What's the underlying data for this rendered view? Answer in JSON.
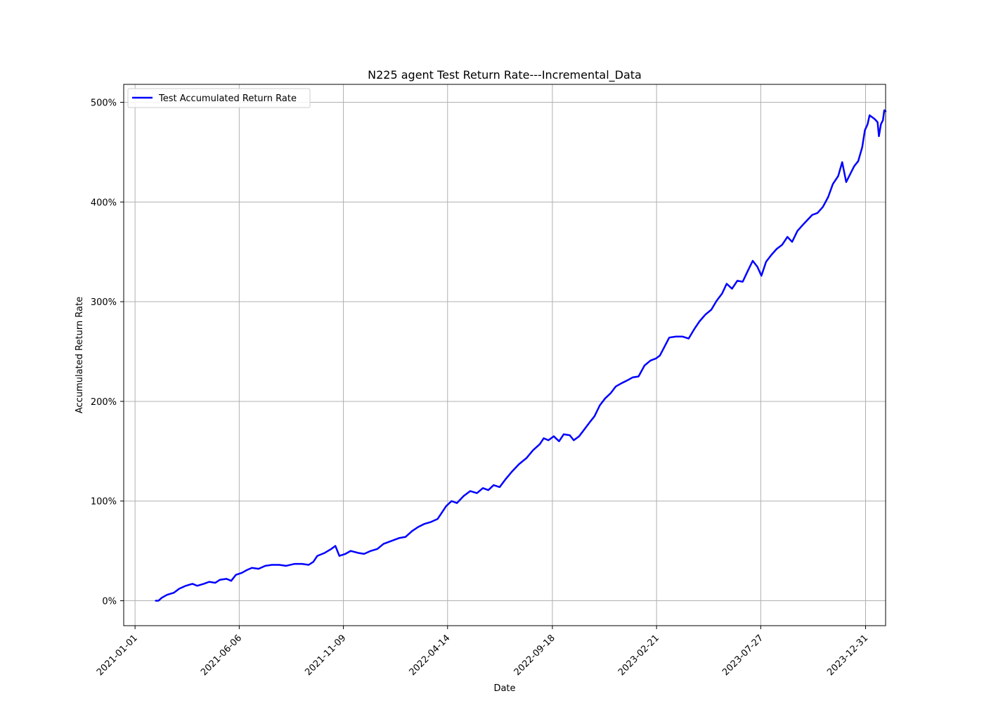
{
  "chart_data": {
    "type": "line",
    "title": "N225 agent Test Return Rate---Incremental_Data",
    "xlabel": "Date",
    "ylabel": "Accumulated Return Rate",
    "x_axis_kind": "date",
    "xlim": [
      "2020-12-15",
      "2024-01-30"
    ],
    "ylim": [
      -25,
      518
    ],
    "x_ticks": [
      "2021-01-01",
      "2021-06-06",
      "2021-11-09",
      "2022-04-14",
      "2022-09-18",
      "2023-02-21",
      "2023-07-27",
      "2023-12-31"
    ],
    "y_ticks": [
      0,
      100,
      200,
      300,
      400,
      500
    ],
    "y_tick_labels": [
      "0%",
      "100%",
      "200%",
      "300%",
      "400%",
      "500%"
    ],
    "grid": true,
    "legend_position": "top-left",
    "line_color": "#0000ff",
    "series": [
      {
        "name": "Test Accumulated Return Rate",
        "color": "#0000ff",
        "points": [
          [
            "2021-02-01",
            0
          ],
          [
            "2021-02-05",
            0
          ],
          [
            "2021-02-10",
            3
          ],
          [
            "2021-02-18",
            6
          ],
          [
            "2021-02-28",
            8
          ],
          [
            "2021-03-08",
            12
          ],
          [
            "2021-03-18",
            15
          ],
          [
            "2021-03-28",
            17
          ],
          [
            "2021-04-04",
            15
          ],
          [
            "2021-04-14",
            17
          ],
          [
            "2021-04-22",
            19
          ],
          [
            "2021-05-01",
            18
          ],
          [
            "2021-05-08",
            21
          ],
          [
            "2021-05-18",
            22
          ],
          [
            "2021-05-25",
            20
          ],
          [
            "2021-06-01",
            26
          ],
          [
            "2021-06-10",
            28
          ],
          [
            "2021-06-18",
            31
          ],
          [
            "2021-06-25",
            33
          ],
          [
            "2021-07-05",
            32
          ],
          [
            "2021-07-15",
            35
          ],
          [
            "2021-07-25",
            36
          ],
          [
            "2021-08-05",
            36
          ],
          [
            "2021-08-15",
            35
          ],
          [
            "2021-08-28",
            37
          ],
          [
            "2021-09-08",
            37
          ],
          [
            "2021-09-18",
            36
          ],
          [
            "2021-09-25",
            39
          ],
          [
            "2021-10-01",
            45
          ],
          [
            "2021-10-12",
            48
          ],
          [
            "2021-10-22",
            52
          ],
          [
            "2021-10-28",
            55
          ],
          [
            "2021-11-03",
            45
          ],
          [
            "2021-11-12",
            47
          ],
          [
            "2021-11-20",
            50
          ],
          [
            "2021-12-01",
            48
          ],
          [
            "2021-12-10",
            47
          ],
          [
            "2021-12-20",
            50
          ],
          [
            "2021-12-30",
            52
          ],
          [
            "2022-01-08",
            57
          ],
          [
            "2022-01-20",
            60
          ],
          [
            "2022-02-01",
            63
          ],
          [
            "2022-02-10",
            64
          ],
          [
            "2022-02-20",
            70
          ],
          [
            "2022-03-01",
            74
          ],
          [
            "2022-03-10",
            77
          ],
          [
            "2022-03-20",
            79
          ],
          [
            "2022-03-30",
            82
          ],
          [
            "2022-04-05",
            88
          ],
          [
            "2022-04-12",
            95
          ],
          [
            "2022-04-20",
            100
          ],
          [
            "2022-04-28",
            98
          ],
          [
            "2022-05-08",
            105
          ],
          [
            "2022-05-18",
            110
          ],
          [
            "2022-05-28",
            108
          ],
          [
            "2022-06-06",
            113
          ],
          [
            "2022-06-14",
            111
          ],
          [
            "2022-06-22",
            116
          ],
          [
            "2022-07-01",
            114
          ],
          [
            "2022-07-10",
            122
          ],
          [
            "2022-07-20",
            130
          ],
          [
            "2022-07-30",
            137
          ],
          [
            "2022-08-10",
            143
          ],
          [
            "2022-08-20",
            151
          ],
          [
            "2022-08-30",
            157
          ],
          [
            "2022-09-05",
            163
          ],
          [
            "2022-09-12",
            161
          ],
          [
            "2022-09-20",
            165
          ],
          [
            "2022-09-28",
            160
          ],
          [
            "2022-10-05",
            167
          ],
          [
            "2022-10-14",
            166
          ],
          [
            "2022-10-20",
            161
          ],
          [
            "2022-10-28",
            165
          ],
          [
            "2022-11-05",
            172
          ],
          [
            "2022-11-14",
            180
          ],
          [
            "2022-11-20",
            185
          ],
          [
            "2022-11-28",
            196
          ],
          [
            "2022-12-06",
            203
          ],
          [
            "2022-12-14",
            208
          ],
          [
            "2022-12-22",
            215
          ],
          [
            "2022-12-30",
            218
          ],
          [
            "2023-01-08",
            221
          ],
          [
            "2023-01-16",
            224
          ],
          [
            "2023-01-25",
            225
          ],
          [
            "2023-02-03",
            236
          ],
          [
            "2023-02-12",
            241
          ],
          [
            "2023-02-20",
            243
          ],
          [
            "2023-02-26",
            246
          ],
          [
            "2023-03-05",
            255
          ],
          [
            "2023-03-12",
            264
          ],
          [
            "2023-03-22",
            265
          ],
          [
            "2023-04-01",
            265
          ],
          [
            "2023-04-10",
            263
          ],
          [
            "2023-04-18",
            272
          ],
          [
            "2023-04-26",
            280
          ],
          [
            "2023-05-05",
            287
          ],
          [
            "2023-05-14",
            292
          ],
          [
            "2023-05-22",
            301
          ],
          [
            "2023-05-30",
            308
          ],
          [
            "2023-06-06",
            318
          ],
          [
            "2023-06-14",
            313
          ],
          [
            "2023-06-22",
            321
          ],
          [
            "2023-06-30",
            320
          ],
          [
            "2023-07-07",
            330
          ],
          [
            "2023-07-15",
            341
          ],
          [
            "2023-07-22",
            335
          ],
          [
            "2023-07-28",
            326
          ],
          [
            "2023-08-04",
            340
          ],
          [
            "2023-08-12",
            347
          ],
          [
            "2023-08-20",
            353
          ],
          [
            "2023-08-28",
            357
          ],
          [
            "2023-09-05",
            365
          ],
          [
            "2023-09-12",
            360
          ],
          [
            "2023-09-20",
            371
          ],
          [
            "2023-09-28",
            377
          ],
          [
            "2023-10-05",
            382
          ],
          [
            "2023-10-12",
            387
          ],
          [
            "2023-10-20",
            389
          ],
          [
            "2023-10-28",
            395
          ],
          [
            "2023-11-05",
            405
          ],
          [
            "2023-11-12",
            418
          ],
          [
            "2023-11-20",
            426
          ],
          [
            "2023-11-26",
            440
          ],
          [
            "2023-12-02",
            420
          ],
          [
            "2023-12-08",
            428
          ],
          [
            "2023-12-14",
            436
          ],
          [
            "2023-12-20",
            441
          ],
          [
            "2023-12-26",
            455
          ],
          [
            "2023-12-30",
            472
          ],
          [
            "2024-01-03",
            478
          ],
          [
            "2024-01-06",
            487
          ],
          [
            "2024-01-10",
            485
          ],
          [
            "2024-01-14",
            483
          ],
          [
            "2024-01-18",
            480
          ],
          [
            "2024-01-20",
            466
          ],
          [
            "2024-01-23",
            478
          ],
          [
            "2024-01-26",
            482
          ],
          [
            "2024-01-28",
            492
          ],
          [
            "2024-01-30",
            491
          ]
        ]
      }
    ]
  }
}
